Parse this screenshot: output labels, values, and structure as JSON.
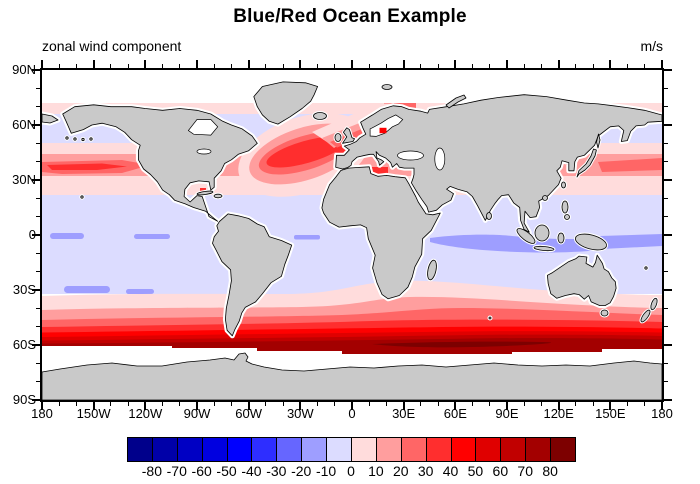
{
  "title": "Blue/Red Ocean Example",
  "subtitle_left": "zonal wind component",
  "subtitle_right": "m/s",
  "axes": {
    "lon_labels": [
      "180",
      "150W",
      "120W",
      "90W",
      "60W",
      "30W",
      "0",
      "30E",
      "60E",
      "90E",
      "120E",
      "150E",
      "180"
    ],
    "lat_labels": [
      "90N",
      "60N",
      "30N",
      "0",
      "30S",
      "60S",
      "90S"
    ]
  },
  "colorbar": {
    "colors": [
      "#00008B",
      "#0000A8",
      "#0000C4",
      "#0000E0",
      "#0000FF",
      "#2E2EFF",
      "#6666FF",
      "#9E9EFF",
      "#DCDCFF",
      "#FFDCDC",
      "#FF9E9E",
      "#FF6666",
      "#FF2E2E",
      "#FF0000",
      "#E00000",
      "#C10000",
      "#A30000",
      "#7D0000"
    ],
    "labels": [
      "-80",
      "-70",
      "-60",
      "-50",
      "-40",
      "-30",
      "-20",
      "-10",
      "0",
      "10",
      "20",
      "30",
      "40",
      "50",
      "60",
      "70",
      "80"
    ]
  },
  "chart_data": {
    "type": "heatmap",
    "subtype": "filled_contour_map",
    "projection": "cylindrical equidistant, global",
    "title": "Blue/Red Ocean Example",
    "left_string": "zonal wind component",
    "right_string": "m/s",
    "units": "m/s",
    "contour_levels": [
      -80,
      -70,
      -60,
      -50,
      -40,
      -30,
      -20,
      -10,
      0,
      10,
      20,
      30,
      40,
      50,
      60,
      70,
      80
    ],
    "palette": [
      "#00008B",
      "#0000A8",
      "#0000C4",
      "#0000E0",
      "#0000FF",
      "#2E2EFF",
      "#6666FF",
      "#9E9EFF",
      "#DCDCFF",
      "#FFDCDC",
      "#FF9E9E",
      "#FF6666",
      "#FF2E2E",
      "#FF0000",
      "#E00000",
      "#C10000",
      "#A30000",
      "#7D0000"
    ],
    "land_color": "#C9C9C9",
    "missing_data_color": "#FFFFFF",
    "legend_position": "bottom horizontal label bar",
    "grid": false,
    "xlabel_ticks": [
      "180",
      "150W",
      "120W",
      "90W",
      "60W",
      "30W",
      "0",
      "30E",
      "60E",
      "90E",
      "120E",
      "150E",
      "180"
    ],
    "ylabel_ticks": [
      "90N",
      "60N",
      "30N",
      "0",
      "30S",
      "60S",
      "90S"
    ],
    "zonal_bands_estimated_values_mps": [
      {
        "lat_range": "north of 72N",
        "value": "missing (white)"
      },
      {
        "lat_range": "66N-72N",
        "value": "0 to 10, red cells 10 to 30 in Barents Sea"
      },
      {
        "lat_range": "50N-66N",
        "value": "-10 to 0 Pacific; 10 to 40 NE Atlantic toward Norway"
      },
      {
        "lat_range": "32N-50N",
        "value": "10 to 30 Pacific core; 30 to 50 North Atlantic core; 30 to 50 Mediterranean cells"
      },
      {
        "lat_range": "22N-32N",
        "value": "0 to 10"
      },
      {
        "lat_range": "8N-22N",
        "value": "-10 to 0"
      },
      {
        "lat_range": "8S-8N",
        "value": "-20 to -10 in Indian and western Pacific; elsewhere -10 to 0"
      },
      {
        "lat_range": "32S-8S",
        "value": "-10 to 0, small -20 to -10 patches near 30S South Pacific"
      },
      {
        "lat_range": "40S-32S",
        "value": "0 to 10"
      },
      {
        "lat_range": "45S-40S",
        "value": "10 to 20"
      },
      {
        "lat_range": "49S-45S",
        "value": "20 to 30"
      },
      {
        "lat_range": "52S-49S",
        "value": "30 to 40"
      },
      {
        "lat_range": "56S-52S",
        "value": "40 to 50"
      },
      {
        "lat_range": "60S-56S",
        "value": "50 to 80, darkest (70-80) in Indian Ocean sector"
      },
      {
        "lat_range": "south of 60S",
        "value": "missing (white)"
      }
    ],
    "notable_features": [
      "Gray continents with thin black coastlines",
      "White (missing) cells fringe all coasts",
      "Bright red Baltic Sea cell near 57N 18E",
      "Red cells in Mediterranean Sea",
      "Southern Ocean westerly maximum is the darkest red band near 55-60S"
    ]
  }
}
